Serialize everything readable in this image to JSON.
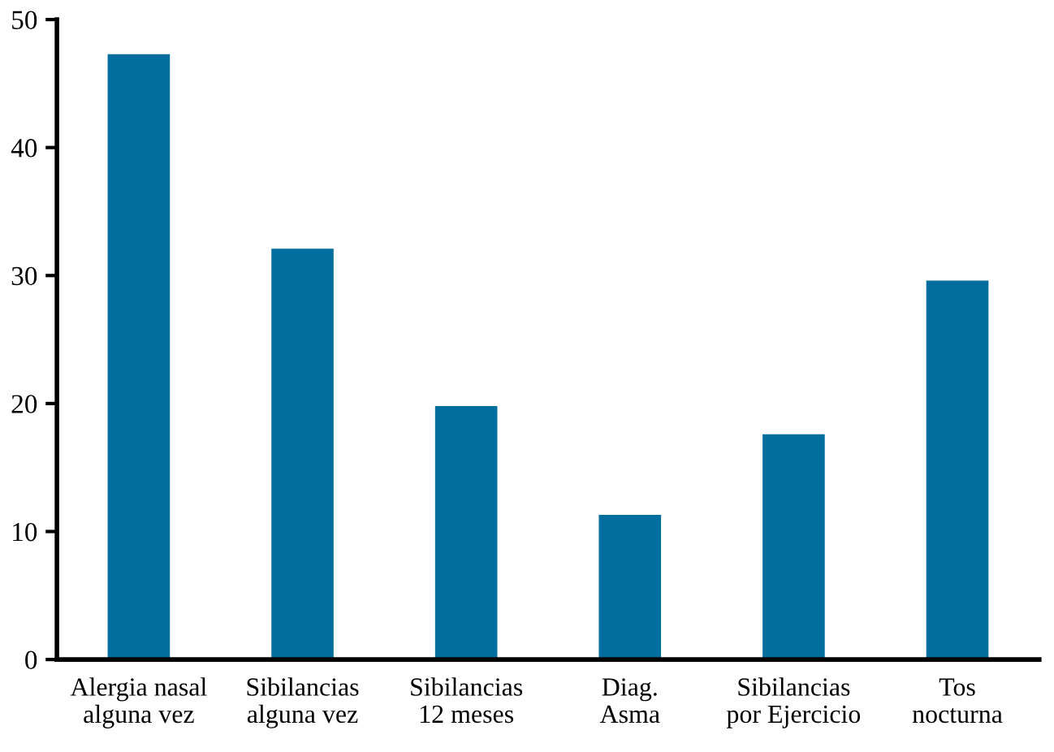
{
  "chart_data": {
    "type": "bar",
    "categories": [
      "Alergia nasal\nalguna vez",
      "Sibilancias\nalguna vez",
      "Sibilancias\n12 meses",
      "Diag.\nAsma",
      "Sibilancias\npor Ejercicio",
      "Tos\nnocturna"
    ],
    "values": [
      47.3,
      32.1,
      19.8,
      11.3,
      17.6,
      29.6
    ],
    "color": "#006e9e",
    "ylim": [
      0,
      50
    ],
    "yticks": [
      0,
      10,
      20,
      30,
      40,
      50
    ],
    "grid": false,
    "legend": false
  }
}
